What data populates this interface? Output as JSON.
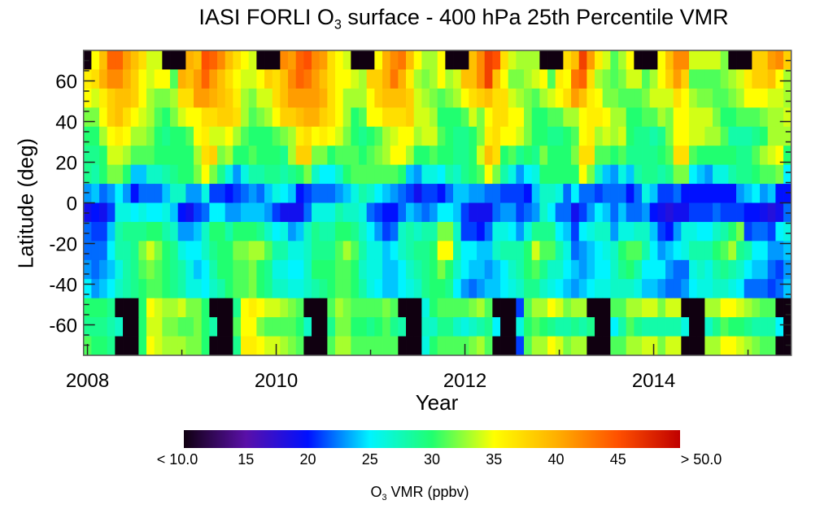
{
  "chart_data": {
    "type": "heatmap",
    "title_prefix": "IASI FORLI O",
    "title_sub": "3",
    "title_suffix": " surface - 400 hPa 25th Percentile VMR",
    "xlabel": "Year",
    "ylabel": "Latitude (deg)",
    "x_start_month": "2008-01",
    "x_n_months": 90,
    "x_ticks": [
      2008,
      2010,
      2012,
      2014
    ],
    "x_tick_labels": [
      "2008",
      "2010",
      "2012",
      "2014"
    ],
    "ylim": [
      -75,
      75
    ],
    "y_ticks": [
      60,
      40,
      20,
      0,
      -20,
      -40,
      -60
    ],
    "y_tick_labels": [
      "60",
      "40",
      "20",
      "0",
      "-20",
      "-40",
      "-60"
    ],
    "row_order": "north-to-south, 16 latitude bins from 75 to -75",
    "missing_or_below_min": null,
    "values": [
      [
        null,
        35,
        39,
        44,
        44,
        41,
        39,
        37,
        34,
        34,
        null,
        null,
        null,
        40,
        39,
        45,
        44,
        42,
        39,
        37,
        35,
        34,
        null,
        null,
        null,
        42,
        41,
        44,
        45,
        42,
        41,
        37,
        35,
        34,
        null,
        null,
        null,
        35,
        40,
        42,
        43,
        39,
        35,
        33,
        33,
        35,
        null,
        null,
        null,
        39,
        42,
        46,
        45,
        37,
        34,
        33,
        33,
        33,
        null,
        null,
        null,
        37,
        39,
        46,
        41,
        36,
        34,
        31,
        33,
        35,
        null,
        null,
        null,
        35,
        39,
        42,
        42,
        34,
        34,
        34,
        34,
        32,
        null,
        null,
        null,
        38,
        38,
        41,
        42,
        38
      ],
      [
        36,
        37,
        40,
        42,
        42,
        40,
        38,
        35,
        34,
        35,
        35,
        31,
        40,
        39,
        41,
        44,
        41,
        39,
        37,
        35,
        34,
        34,
        35,
        38,
        37,
        39,
        42,
        44,
        43,
        41,
        39,
        37,
        35,
        35,
        34,
        33,
        38,
        38,
        40,
        43,
        40,
        36,
        33,
        32,
        33,
        35,
        33,
        34,
        39,
        39,
        42,
        46,
        39,
        35,
        32,
        32,
        33,
        34,
        35,
        31,
        36,
        35,
        43,
        44,
        37,
        33,
        32,
        31,
        32,
        34,
        34,
        31,
        33,
        35,
        38,
        41,
        38,
        31,
        31,
        31,
        31,
        32,
        33,
        34,
        36,
        38,
        38,
        39,
        35,
        33
      ],
      [
        35,
        34,
        36,
        38,
        39,
        39,
        38,
        35,
        33,
        32,
        32,
        33,
        37,
        37,
        41,
        41,
        40,
        39,
        38,
        36,
        33,
        32,
        34,
        34,
        37,
        39,
        41,
        41,
        41,
        41,
        40,
        37,
        35,
        33,
        33,
        33,
        35,
        38,
        39,
        39,
        39,
        38,
        34,
        33,
        32,
        31,
        32,
        33,
        35,
        37,
        38,
        39,
        37,
        37,
        34,
        33,
        32,
        31,
        33,
        34,
        35,
        37,
        41,
        39,
        36,
        35,
        32,
        32,
        31,
        31,
        31,
        32,
        34,
        34,
        34,
        37,
        35,
        33,
        32,
        32,
        31,
        31,
        32,
        33,
        35,
        35,
        35,
        34,
        34,
        33
      ],
      [
        32,
        32,
        35,
        38,
        39,
        37,
        35,
        34,
        33,
        31,
        30,
        32,
        34,
        35,
        35,
        37,
        37,
        38,
        38,
        37,
        33,
        31,
        32,
        33,
        35,
        38,
        38,
        39,
        40,
        40,
        38,
        37,
        35,
        33,
        30,
        31,
        35,
        35,
        37,
        37,
        37,
        38,
        34,
        34,
        33,
        30,
        30,
        30,
        31,
        34,
        32,
        35,
        37,
        37,
        35,
        35,
        32,
        30,
        30,
        31,
        31,
        33,
        33,
        35,
        36,
        36,
        35,
        33,
        33,
        30,
        30,
        31,
        31,
        33,
        32,
        35,
        35,
        34,
        34,
        34,
        32,
        30,
        30,
        31,
        31,
        31,
        32,
        33,
        33,
        34
      ],
      [
        30,
        30,
        33,
        35,
        36,
        35,
        33,
        33,
        32,
        30,
        29,
        30,
        30,
        31,
        35,
        36,
        34,
        34,
        35,
        33,
        31,
        30,
        30,
        30,
        31,
        32,
        33,
        36,
        37,
        35,
        36,
        35,
        34,
        32,
        30,
        29,
        30,
        31,
        33,
        34,
        35,
        35,
        33,
        34,
        34,
        31,
        30,
        29,
        29,
        30,
        32,
        36,
        37,
        35,
        35,
        34,
        32,
        30,
        30,
        29,
        29,
        30,
        31,
        35,
        36,
        33,
        34,
        33,
        34,
        30,
        29,
        29,
        28,
        29,
        32,
        35,
        35,
        34,
        34,
        33,
        33,
        31,
        28,
        28,
        28,
        29,
        30,
        33,
        33,
        33
      ],
      [
        29,
        29,
        30,
        34,
        34,
        33,
        31,
        31,
        31,
        30,
        30,
        30,
        30,
        30,
        33,
        37,
        38,
        32,
        33,
        30,
        30,
        31,
        30,
        30,
        30,
        29,
        33,
        38,
        38,
        32,
        32,
        30,
        31,
        31,
        31,
        30,
        31,
        32,
        33,
        35,
        35,
        33,
        30,
        30,
        31,
        30,
        30,
        29,
        29,
        30,
        34,
        39,
        37,
        30,
        31,
        29,
        30,
        29,
        32,
        30,
        30,
        30,
        32,
        37,
        37,
        31,
        31,
        30,
        31,
        29,
        29,
        29,
        29,
        30,
        31,
        37,
        37,
        31,
        30,
        30,
        30,
        30,
        30,
        29,
        29,
        31,
        33,
        34,
        35,
        30
      ],
      [
        29,
        28,
        30,
        32,
        32,
        30,
        24,
        24,
        27,
        27,
        28,
        29,
        30,
        30,
        32,
        35,
        32,
        29,
        26,
        23,
        26,
        28,
        28,
        29,
        29,
        28,
        29,
        30,
        32,
        27,
        25,
        25,
        27,
        30,
        31,
        31,
        31,
        31,
        31,
        31,
        30,
        24,
        23,
        26,
        26,
        25,
        28,
        27,
        29,
        30,
        31,
        35,
        32,
        28,
        26,
        23,
        25,
        26,
        30,
        30,
        30,
        30,
        30,
        35,
        32,
        27,
        24,
        23,
        26,
        24,
        28,
        29,
        29,
        28,
        29,
        32,
        32,
        25,
        24,
        23,
        26,
        26,
        28,
        29,
        29,
        30,
        31,
        31,
        32,
        25
      ],
      [
        23,
        24,
        22,
        23,
        25,
        23,
        20,
        22,
        22,
        22,
        24,
        27,
        27,
        23,
        23,
        26,
        21,
        21,
        20,
        21,
        22,
        23,
        22,
        24,
        26,
        25,
        24,
        20,
        21,
        22,
        22,
        22,
        23,
        24,
        26,
        28,
        27,
        25,
        24,
        23,
        22,
        21,
        19,
        21,
        21,
        20,
        22,
        24,
        24,
        23,
        23,
        22,
        22,
        21,
        21,
        21,
        20,
        24,
        27,
        27,
        26,
        22,
        25,
        22,
        22,
        21,
        22,
        22,
        22,
        20,
        22,
        26,
        24,
        21,
        21,
        22,
        20,
        20,
        20,
        20,
        20,
        20,
        20,
        23,
        24,
        25,
        23,
        24,
        20,
        20
      ],
      [
        19,
        20,
        19,
        21,
        26,
        26,
        25,
        26,
        25,
        25,
        26,
        24,
        20,
        19,
        21,
        22,
        25,
        25,
        23,
        23,
        24,
        24,
        24,
        23,
        21,
        19,
        19,
        19,
        22,
        26,
        26,
        26,
        28,
        27,
        27,
        26,
        22,
        21,
        20,
        20,
        22,
        24,
        23,
        22,
        23,
        25,
        25,
        24,
        21,
        19,
        19,
        19,
        22,
        23,
        23,
        21,
        22,
        23,
        27,
        25,
        22,
        22,
        19,
        21,
        23,
        25,
        24,
        22,
        24,
        22,
        22,
        23,
        20,
        19,
        18,
        19,
        19,
        21,
        21,
        21,
        22,
        21,
        21,
        21,
        20,
        20,
        19,
        18,
        19,
        22
      ],
      [
        22,
        21,
        21,
        24,
        28,
        29,
        29,
        29,
        30,
        30,
        28,
        27,
        23,
        23,
        24,
        27,
        30,
        30,
        28,
        30,
        30,
        30,
        29,
        27,
        25,
        26,
        23,
        24,
        27,
        29,
        28,
        28,
        30,
        30,
        29,
        27,
        25,
        23,
        21,
        22,
        27,
        28,
        27,
        28,
        28,
        32,
        32,
        27,
        21,
        21,
        20,
        22,
        26,
        26,
        25,
        23,
        26,
        29,
        29,
        29,
        25,
        24,
        21,
        25,
        26,
        27,
        27,
        23,
        26,
        26,
        27,
        27,
        24,
        21,
        20,
        23,
        26,
        26,
        25,
        25,
        27,
        28,
        30,
        32,
        21,
        22,
        22,
        21,
        25,
        26
      ],
      [
        22,
        22,
        22,
        25,
        28,
        28,
        29,
        32,
        34,
        32,
        30,
        29,
        26,
        25,
        25,
        27,
        29,
        30,
        30,
        32,
        32,
        33,
        33,
        31,
        28,
        28,
        26,
        26,
        27,
        29,
        29,
        29,
        31,
        33,
        31,
        28,
        26,
        26,
        24,
        25,
        27,
        28,
        29,
        29,
        30,
        35,
        35,
        28,
        25,
        25,
        24,
        24,
        27,
        28,
        28,
        28,
        30,
        34,
        31,
        31,
        28,
        26,
        22,
        23,
        24,
        25,
        26,
        27,
        30,
        31,
        31,
        28,
        25,
        23,
        24,
        25,
        26,
        28,
        28,
        28,
        30,
        31,
        33,
        29,
        28,
        25,
        25,
        23,
        23,
        24
      ],
      [
        23,
        22,
        23,
        24,
        26,
        28,
        29,
        31,
        32,
        31,
        30,
        29,
        28,
        26,
        24,
        25,
        28,
        30,
        30,
        31,
        31,
        32,
        30,
        29,
        26,
        26,
        25,
        25,
        27,
        30,
        30,
        30,
        31,
        31,
        30,
        27,
        26,
        26,
        24,
        24,
        25,
        27,
        28,
        29,
        30,
        32,
        30,
        27,
        25,
        24,
        24,
        23,
        24,
        25,
        27,
        28,
        30,
        31,
        29,
        27,
        27,
        25,
        24,
        23,
        24,
        25,
        25,
        27,
        29,
        30,
        28,
        25,
        25,
        25,
        23,
        22,
        22,
        26,
        27,
        26,
        28,
        29,
        28,
        27,
        25,
        24,
        24,
        22,
        21,
        23
      ],
      [
        25,
        23,
        24,
        25,
        27,
        28,
        29,
        30,
        31,
        31,
        30,
        29,
        28,
        26,
        26,
        25,
        27,
        28,
        30,
        31,
        31,
        32,
        30,
        29,
        27,
        27,
        26,
        26,
        27,
        28,
        29,
        30,
        31,
        31,
        30,
        28,
        26,
        25,
        24,
        24,
        25,
        26,
        27,
        29,
        30,
        30,
        29,
        25,
        23,
        22,
        23,
        24,
        24,
        25,
        26,
        27,
        29,
        29,
        27,
        26,
        25,
        24,
        23,
        24,
        25,
        26,
        26,
        27,
        27,
        27,
        26,
        24,
        24,
        23,
        22,
        22,
        23,
        25,
        26,
        26,
        27,
        27,
        26,
        25,
        22,
        22,
        22,
        21,
        22,
        24
      ],
      [
        30,
        30,
        30,
        29,
        null,
        null,
        null,
        30,
        35,
        34,
        33,
        33,
        34,
        32,
        32,
        30,
        null,
        null,
        null,
        29,
        35,
        36,
        35,
        34,
        34,
        33,
        32,
        31,
        null,
        null,
        null,
        31,
        33,
        32,
        31,
        31,
        31,
        31,
        32,
        31,
        null,
        null,
        null,
        26,
        30,
        31,
        31,
        31,
        31,
        32,
        33,
        31,
        null,
        null,
        null,
        21,
        31,
        33,
        33,
        35,
        34,
        32,
        33,
        33,
        null,
        null,
        null,
        31,
        31,
        33,
        33,
        34,
        34,
        32,
        34,
        34,
        null,
        null,
        null,
        33,
        33,
        35,
        35,
        34,
        33,
        32,
        31,
        31,
        null,
        null
      ],
      [
        29,
        29,
        29,
        28,
        27,
        null,
        null,
        30,
        34,
        34,
        32,
        32,
        31,
        31,
        32,
        30,
        28,
        null,
        null,
        31,
        35,
        35,
        32,
        31,
        31,
        31,
        31,
        30,
        27,
        null,
        null,
        29,
        32,
        32,
        30,
        30,
        29,
        30,
        31,
        29,
        28,
        null,
        null,
        27,
        27,
        29,
        29,
        27,
        26,
        27,
        28,
        29,
        25,
        null,
        null,
        26,
        30,
        31,
        30,
        29,
        28,
        28,
        29,
        28,
        29,
        null,
        null,
        25,
        28,
        31,
        29,
        28,
        28,
        28,
        28,
        28,
        26,
        null,
        null,
        27,
        29,
        31,
        30,
        30,
        29,
        28,
        28,
        28,
        25,
        null
      ],
      [
        31,
        30,
        30,
        29,
        null,
        null,
        null,
        30,
        35,
        34,
        33,
        33,
        33,
        32,
        32,
        30,
        null,
        null,
        null,
        29,
        36,
        36,
        35,
        34,
        34,
        33,
        32,
        31,
        null,
        null,
        null,
        31,
        33,
        33,
        31,
        31,
        31,
        31,
        31,
        31,
        null,
        null,
        null,
        26,
        30,
        31,
        31,
        31,
        31,
        32,
        33,
        31,
        null,
        null,
        null,
        21,
        31,
        33,
        33,
        35,
        34,
        32,
        33,
        33,
        null,
        null,
        null,
        31,
        31,
        33,
        33,
        34,
        34,
        32,
        34,
        34,
        null,
        null,
        null,
        33,
        33,
        35,
        35,
        34,
        33,
        32,
        31,
        31,
        null,
        null
      ]
    ],
    "colorbar": {
      "range": [
        10,
        50
      ],
      "ticks": [
        10,
        15,
        20,
        25,
        30,
        35,
        40,
        45,
        50
      ],
      "tick_labels": [
        "<  10.0",
        "15",
        "20",
        "25",
        "30",
        "35",
        "40",
        "45",
        ">  50.0"
      ],
      "label_prefix": "O",
      "label_sub": "3",
      "label_suffix": " VMR (ppbv)",
      "stops": [
        [
          10,
          "#100010"
        ],
        [
          15,
          "#5a10a8"
        ],
        [
          20,
          "#0010ff"
        ],
        [
          25,
          "#00f4ff"
        ],
        [
          30,
          "#20ff70"
        ],
        [
          35,
          "#ffff00"
        ],
        [
          40,
          "#ffb000"
        ],
        [
          45,
          "#ff5000"
        ],
        [
          50,
          "#c00000"
        ]
      ]
    }
  }
}
